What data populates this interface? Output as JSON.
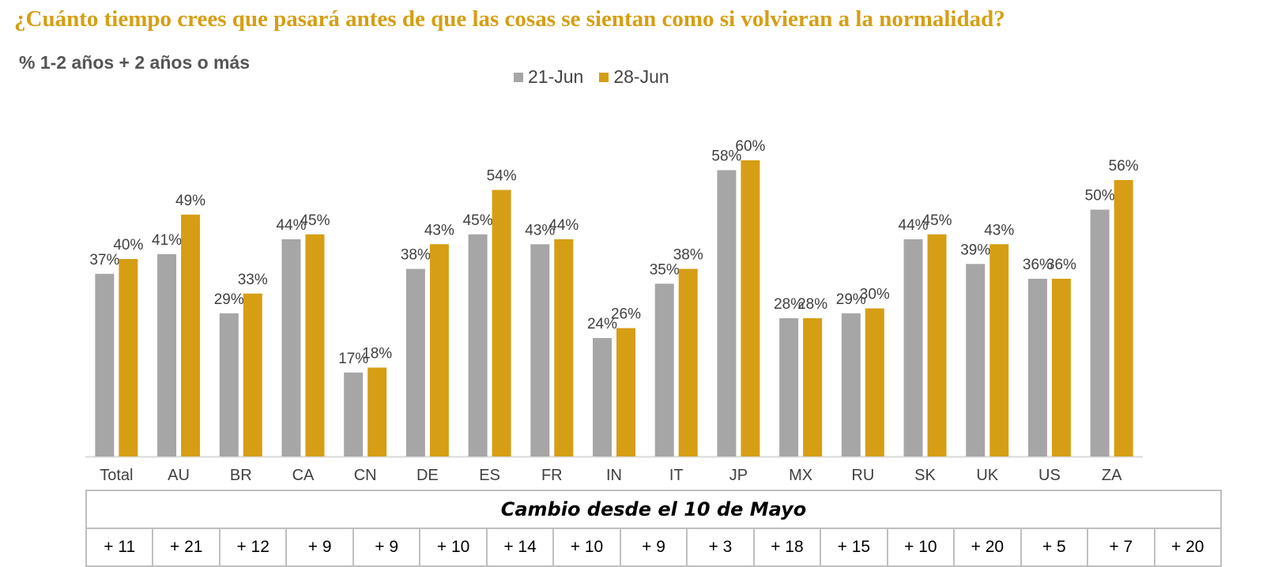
{
  "title": "¿Cuánto tiempo crees que pasará antes de que las cosas se sientan como si volvieran a la normalidad?",
  "subtitle": "% 1-2 años + 2 años o más",
  "colors": {
    "series1": "#A6A6A6",
    "series2": "#D69E14",
    "title": "#D69E14"
  },
  "chart_data": {
    "type": "bar",
    "title": "¿Cuánto tiempo crees que pasará antes de que las cosas se sientan como si volvieran a la normalidad?",
    "subtitle": "% 1-2 años + 2 años o más",
    "categories": [
      "Total",
      "AU",
      "BR",
      "CA",
      "CN",
      "DE",
      "ES",
      "FR",
      "IN",
      "IT",
      "JP",
      "MX",
      "RU",
      "SK",
      "UK",
      "US",
      "ZA"
    ],
    "series": [
      {
        "name": "21-Jun",
        "values": [
          37,
          41,
          29,
          44,
          17,
          38,
          45,
          43,
          24,
          35,
          58,
          28,
          29,
          44,
          39,
          36,
          50
        ]
      },
      {
        "name": "28-Jun",
        "values": [
          40,
          49,
          33,
          45,
          18,
          43,
          54,
          44,
          26,
          38,
          60,
          28,
          30,
          45,
          43,
          36,
          56
        ]
      }
    ],
    "value_suffix": "%",
    "ylim": [
      0,
      65
    ],
    "legend": "top-center",
    "grid": false
  },
  "change_table": {
    "title": "Cambio desde el 10 de Mayo",
    "values": [
      "+ 11",
      "+ 21",
      "+ 12",
      "+ 9",
      "+ 9",
      "+ 10",
      "+ 14",
      "+ 10",
      "+ 9",
      "+ 3",
      "+ 18",
      "+ 15",
      "+ 10",
      "+ 20",
      "+ 5",
      "+ 7",
      "+ 20"
    ]
  }
}
